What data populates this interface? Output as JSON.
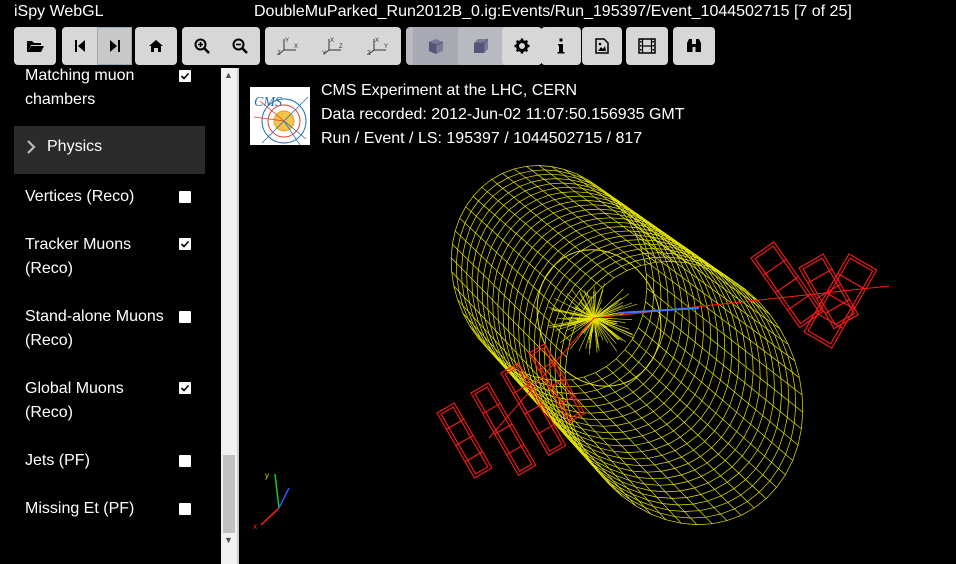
{
  "app": {
    "title": "iSpy WebGL",
    "event_title": "DoubleMuParked_Run2012B_0.ig:Events/Run_195397/Event_1044502715 [7 of 25]"
  },
  "toolbar": {
    "buttons": [
      {
        "name": "open-file-button",
        "icon": "folder-open-icon"
      },
      {
        "name": "previous-event-button",
        "icon": "skip-previous-icon"
      },
      {
        "name": "next-event-button",
        "icon": "skip-next-icon"
      },
      {
        "name": "home-view-button",
        "icon": "home-icon"
      },
      {
        "name": "zoom-in-button",
        "icon": "zoom-in-icon"
      },
      {
        "name": "zoom-out-button",
        "icon": "zoom-out-icon"
      },
      {
        "name": "view-xy-button",
        "icon": "axes-xy-icon"
      },
      {
        "name": "view-zx-button",
        "icon": "axes-zx-icon"
      },
      {
        "name": "view-yz-button",
        "icon": "axes-yz-icon"
      },
      {
        "name": "perspective-button",
        "icon": "cube-perspective-icon"
      },
      {
        "name": "orthographic-button",
        "icon": "cube-orthographic-icon"
      },
      {
        "name": "settings-button",
        "icon": "gear-icon"
      },
      {
        "name": "info-button",
        "icon": "info-icon"
      },
      {
        "name": "image-export-button",
        "icon": "picture-icon"
      },
      {
        "name": "animation-button",
        "icon": "film-icon"
      },
      {
        "name": "detector-view-button",
        "icon": "binoculars-icon"
      }
    ]
  },
  "sidebar": {
    "items": [
      {
        "label": "Matching muon chambers",
        "checked": true
      },
      {
        "label": "Vertices (Reco)",
        "checked": false
      },
      {
        "label": "Tracker Muons (Reco)",
        "checked": true
      },
      {
        "label": "Stand-alone Muons (Reco)",
        "checked": false
      },
      {
        "label": "Global Muons (Reco)",
        "checked": true
      },
      {
        "label": "Jets (PF)",
        "checked": false
      },
      {
        "label": "Missing Et (PF)",
        "checked": false
      }
    ],
    "group": {
      "label": "Physics",
      "icon": "chevron-right-icon"
    }
  },
  "viewer": {
    "logo_text": "CMS",
    "experiment": "CMS Experiment at the LHC, CERN",
    "recorded": "Data recorded: 2012-Jun-02 11:07:50.156935 GMT",
    "run_event": "Run / Event / LS: 195397 / 1044502715 / 817"
  },
  "colors": {
    "detector": "#e6e600",
    "muon_chambers": "#ff1a1a",
    "toolbar_button": "#d7d7d7",
    "group_row": "#2b2b2b"
  }
}
